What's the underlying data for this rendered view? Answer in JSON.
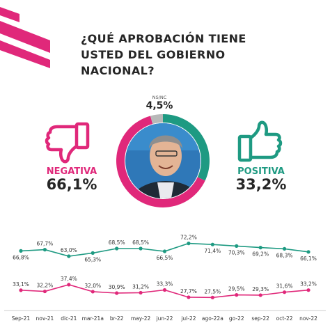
{
  "title_lines": [
    "¿QUÉ APROBACIÓN TIENE",
    "USTED DEL GOBIERNO",
    "NACIONAL?"
  ],
  "colors": {
    "accent": "#e0287a",
    "positive": "#1e9a82",
    "nsnc": "#b8b8b8",
    "text": "#262626"
  },
  "negativa": {
    "label": "NEGATIVA",
    "value": "66,1%",
    "icon": "thumbs-down-icon"
  },
  "positiva": {
    "label": "POSITIVA",
    "value": "33,2%",
    "icon": "thumbs-up-icon"
  },
  "nsnc": {
    "label": "NS/NC",
    "value": "4,5%"
  },
  "chart_data": [
    {
      "type": "pie",
      "labels": [
        "NEGATIVA",
        "POSITIVA",
        "NS/NC"
      ],
      "values": [
        66.1,
        33.2,
        4.5
      ]
    },
    {
      "type": "line",
      "categories": [
        "Sep-21",
        "nov-21",
        "dic-21",
        "mar-21a",
        "br-22",
        "may-22",
        "jun-22",
        "jul-22",
        "ago-22a",
        "go-22",
        "sep-22",
        "oct-22",
        "nov-22"
      ],
      "series": [
        {
          "values": [
            66.8,
            67.7,
            63.0,
            65.3,
            68.5,
            68.5,
            66.5,
            72.2,
            71.4,
            70.3,
            69.2,
            68.3,
            66.1
          ],
          "labels": [
            "66,8%",
            "67,7%",
            "63,0%",
            "65,3%",
            "68,5%",
            "68,5%",
            "66,5%",
            "72,2%",
            "71,4%",
            "70,3%",
            "69,2%",
            "68,3%",
            "66,1%"
          ],
          "color": "#1e9a82"
        },
        {
          "values": [
            33.1,
            32.2,
            37.4,
            32.0,
            30.9,
            31.2,
            33.3,
            27.7,
            27.5,
            29.5,
            29.3,
            31.6,
            33.2
          ],
          "labels": [
            "33,1%",
            "32,2%",
            "37,4%",
            "32,0%",
            "30,9%",
            "31,2%",
            "33,3%",
            "27,7%",
            "27,5%",
            "29,5%",
            "29,3%",
            "31,6%",
            "33,2%"
          ],
          "color": "#e0287a"
        }
      ]
    }
  ]
}
